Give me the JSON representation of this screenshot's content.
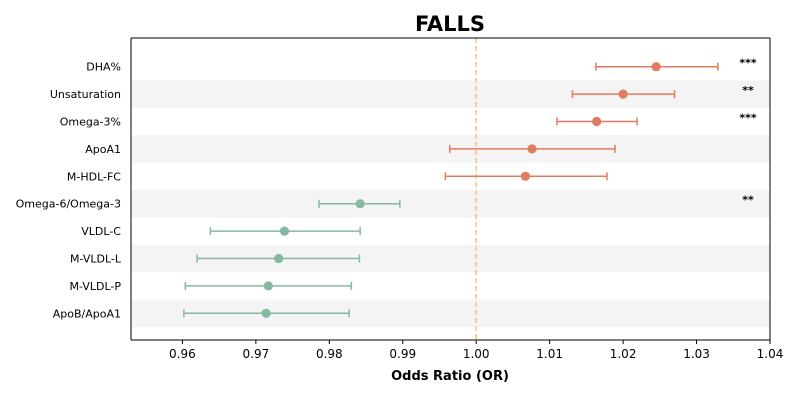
{
  "chart_data": {
    "type": "forest",
    "title": "FALLS",
    "xlabel": "Odds Ratio (OR)",
    "xlim": [
      0.953,
      1.04
    ],
    "xticks": [
      "0.96",
      "0.97",
      "0.98",
      "0.99",
      "1.00",
      "1.01",
      "1.02",
      "1.03",
      "1.04"
    ],
    "reference_line": 1.0,
    "colors": {
      "positive": "#e07b5f",
      "negative": "#86b9a0",
      "reference": "#f5c97a",
      "band": "#f4f4f4"
    },
    "rows": [
      {
        "label": "DHA%",
        "or": 1.0245,
        "lo": 1.0163,
        "hi": 1.0329,
        "sig": "***"
      },
      {
        "label": "Unsaturation",
        "or": 1.02,
        "lo": 1.0131,
        "hi": 1.027,
        "sig": "**"
      },
      {
        "label": "Omega-3%",
        "or": 1.0164,
        "lo": 1.011,
        "hi": 1.0219,
        "sig": "***"
      },
      {
        "label": "ApoA1",
        "or": 1.0076,
        "lo": 0.9964,
        "hi": 1.0189,
        "sig": ""
      },
      {
        "label": "M-HDL-FC",
        "or": 1.0067,
        "lo": 0.9958,
        "hi": 1.0178,
        "sig": ""
      },
      {
        "label": "Omega-6/Omega-3",
        "or": 0.9842,
        "lo": 0.9786,
        "hi": 0.9896,
        "sig": "**"
      },
      {
        "label": "VLDL-C",
        "or": 0.9739,
        "lo": 0.9638,
        "hi": 0.9842,
        "sig": ""
      },
      {
        "label": "M-VLDL-L",
        "or": 0.9731,
        "lo": 0.962,
        "hi": 0.9841,
        "sig": ""
      },
      {
        "label": "M-VLDL-P",
        "or": 0.9717,
        "lo": 0.9604,
        "hi": 0.983,
        "sig": ""
      },
      {
        "label": "ApoB/ApoA1",
        "or": 0.9714,
        "lo": 0.9602,
        "hi": 0.9827,
        "sig": ""
      }
    ]
  }
}
